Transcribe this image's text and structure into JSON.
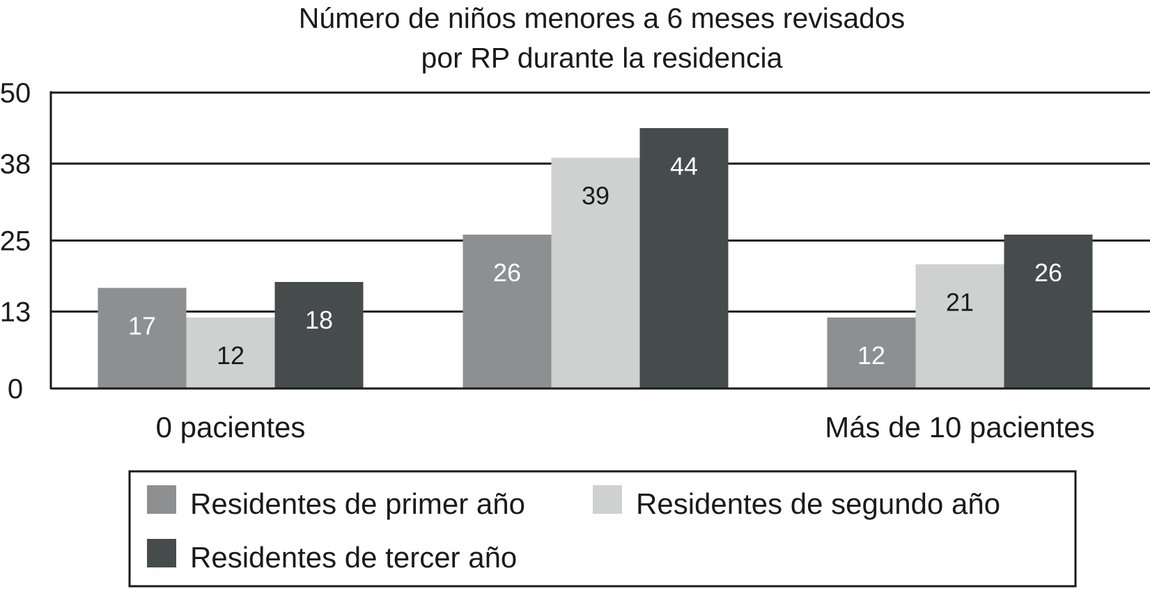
{
  "chart_data": {
    "type": "bar",
    "title": [
      "Número de niños menores a 6 meses revisados",
      "por RP durante la residencia"
    ],
    "categories": [
      "0 pacientes",
      "",
      "Más de 10 pacientes"
    ],
    "yticks": [
      0,
      13,
      25,
      38,
      50
    ],
    "ylim": [
      0,
      50
    ],
    "grid": true,
    "legend_position": "bottom",
    "series": [
      {
        "name": "Residentes de primer año",
        "values": [
          17,
          26,
          12
        ],
        "color": "#8e8f90",
        "label_color": "#ffffff"
      },
      {
        "name": "Residentes de segundo año",
        "values": [
          12,
          39,
          21
        ],
        "color": "#cfd0d0",
        "label_color": "#1a1a1a"
      },
      {
        "name": "Residentes de tercer año",
        "values": [
          18,
          44,
          26
        ],
        "color": "#464b4b",
        "label_color": "#ffffff"
      }
    ]
  }
}
